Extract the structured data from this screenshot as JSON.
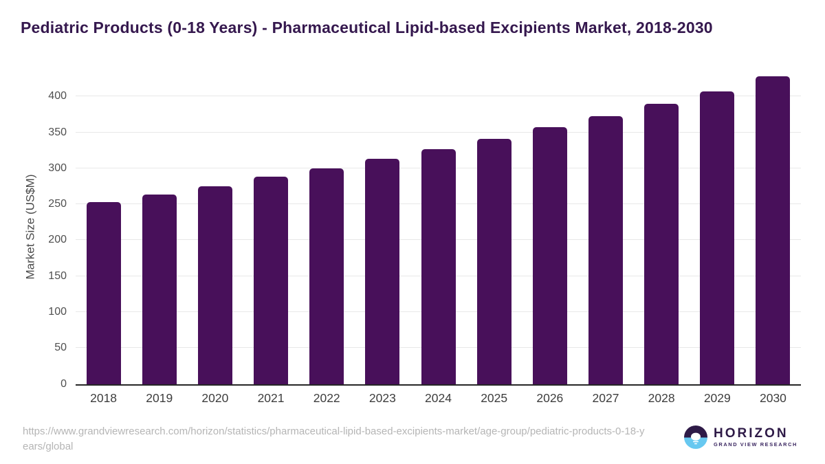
{
  "chart_data": {
    "type": "bar",
    "title": "Pediatric Products (0-18 Years) - Pharmaceutical Lipid-based Excipients Market, 2018-2030",
    "xlabel": "",
    "ylabel": "Market Size (US$M)",
    "categories": [
      "2018",
      "2019",
      "2020",
      "2021",
      "2022",
      "2023",
      "2024",
      "2025",
      "2026",
      "2027",
      "2028",
      "2029",
      "2030"
    ],
    "values": [
      253,
      264,
      275,
      288,
      300,
      313,
      327,
      341,
      357,
      373,
      390,
      407,
      428
    ],
    "y_ticks": [
      0,
      50,
      100,
      150,
      200,
      250,
      300,
      350,
      400
    ],
    "ylim": [
      0,
      438
    ],
    "grid": true,
    "legend": false,
    "bar_color": "#48105A",
    "title_color": "#35184E",
    "gridline_color": "#e8e8e8"
  },
  "footer": {
    "source_url": "https://www.grandviewresearch.com/horizon/statistics/pharmaceutical-lipid-based-excipients-market/age-group/pediatric-products-0-18-years/global",
    "logo": {
      "brand": "HORIZON",
      "subtitle": "GRAND VIEW RESEARCH",
      "icon_top_color": "#2E1A47",
      "icon_bottom_color": "#67C8F0"
    }
  }
}
